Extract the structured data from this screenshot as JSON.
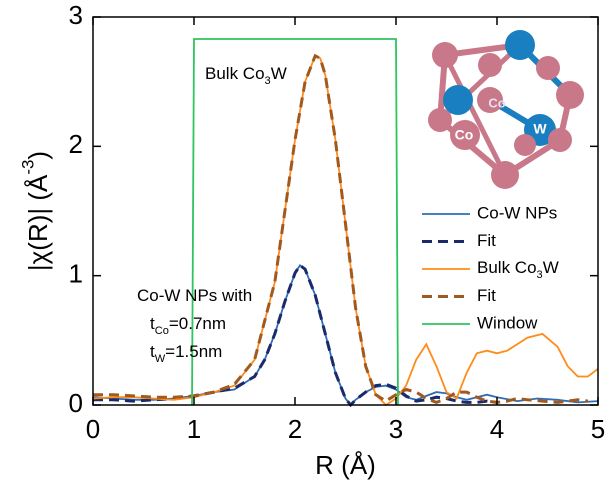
{
  "chart_data": {
    "type": "line",
    "xlabel": "R (Å)",
    "ylabel": [
      "|χ(R)| (Å",
      "-3",
      ")"
    ],
    "xlim": [
      0,
      5
    ],
    "xticks": [
      0,
      1,
      2,
      3,
      4,
      5
    ],
    "ylim": [
      0,
      3
    ],
    "yticks": [
      0,
      1,
      2,
      3
    ],
    "legend": "right",
    "annotations": [
      [
        "Bulk Co",
        "3",
        "W"
      ],
      [
        "Co-W NPs with"
      ],
      [
        "t",
        "Co",
        "=0.7nm"
      ],
      [
        "t",
        "W",
        "=1.5nm"
      ]
    ],
    "inset_labels": [
      "Co",
      "Co",
      "W"
    ],
    "series": [
      {
        "name": "Co-W NPs",
        "color": "#2e6db4",
        "style": "solid",
        "x": [
          0,
          0.2,
          0.4,
          0.6,
          0.8,
          1.0,
          1.2,
          1.4,
          1.6,
          1.7,
          1.8,
          1.9,
          2.0,
          2.05,
          2.1,
          2.2,
          2.3,
          2.4,
          2.5,
          2.55,
          2.6,
          2.7,
          2.8,
          2.9,
          3.0,
          3.1,
          3.2,
          3.3,
          3.4,
          3.5,
          3.6,
          3.7,
          3.8,
          3.9,
          4.0,
          4.2,
          4.4,
          4.6,
          4.8,
          5.0
        ],
        "values": [
          0.06,
          0.05,
          0.04,
          0.04,
          0.05,
          0.07,
          0.1,
          0.12,
          0.22,
          0.35,
          0.55,
          0.8,
          1.02,
          1.08,
          1.05,
          0.85,
          0.55,
          0.25,
          0.05,
          0.0,
          0.04,
          0.1,
          0.14,
          0.15,
          0.12,
          0.06,
          0.04,
          0.07,
          0.1,
          0.09,
          0.06,
          0.04,
          0.06,
          0.08,
          0.06,
          0.03,
          0.05,
          0.04,
          0.02,
          0.03
        ]
      },
      {
        "name": "Fit",
        "color": "#1b2a6b",
        "style": "dashed",
        "x": [
          0,
          0.2,
          0.4,
          0.6,
          0.8,
          1.0,
          1.2,
          1.4,
          1.6,
          1.7,
          1.8,
          1.9,
          2.0,
          2.05,
          2.1,
          2.2,
          2.3,
          2.4,
          2.5,
          2.55,
          2.6,
          2.7,
          2.8,
          2.9,
          3.0,
          3.1,
          3.2,
          3.3,
          3.4,
          3.5,
          3.6,
          3.7,
          3.8,
          3.9,
          4.0
        ],
        "values": [
          0.04,
          0.04,
          0.03,
          0.04,
          0.05,
          0.07,
          0.1,
          0.13,
          0.22,
          0.35,
          0.55,
          0.8,
          1.02,
          1.08,
          1.05,
          0.85,
          0.55,
          0.25,
          0.05,
          0.0,
          0.04,
          0.1,
          0.15,
          0.16,
          0.13,
          0.07,
          0.03,
          0.04,
          0.06,
          0.05,
          0.03,
          0.02,
          0.02,
          0.03,
          0.02
        ]
      },
      {
        "name": [
          "Bulk Co",
          "3",
          "W"
        ],
        "color": "#ff8c1a",
        "style": "solid",
        "x": [
          0,
          0.2,
          0.4,
          0.6,
          0.8,
          1.0,
          1.2,
          1.4,
          1.6,
          1.8,
          1.9,
          2.0,
          2.1,
          2.2,
          2.25,
          2.3,
          2.4,
          2.5,
          2.6,
          2.7,
          2.8,
          2.9,
          3.0,
          3.1,
          3.2,
          3.3,
          3.4,
          3.5,
          3.6,
          3.7,
          3.8,
          3.9,
          4.0,
          4.1,
          4.2,
          4.3,
          4.45,
          4.6,
          4.7,
          4.8,
          4.9,
          5.0
        ],
        "values": [
          0.05,
          0.06,
          0.06,
          0.05,
          0.04,
          0.06,
          0.1,
          0.15,
          0.35,
          0.95,
          1.5,
          2.05,
          2.5,
          2.7,
          2.68,
          2.55,
          2.05,
          1.4,
          0.75,
          0.3,
          0.08,
          0.0,
          0.05,
          0.15,
          0.35,
          0.47,
          0.3,
          0.1,
          0.05,
          0.25,
          0.4,
          0.42,
          0.4,
          0.42,
          0.47,
          0.52,
          0.55,
          0.45,
          0.3,
          0.22,
          0.22,
          0.28
        ]
      },
      {
        "name": "Fit",
        "color": "#a0591f",
        "style": "dashed",
        "x": [
          0,
          0.2,
          0.4,
          0.6,
          0.8,
          1.0,
          1.2,
          1.4,
          1.6,
          1.8,
          1.9,
          2.0,
          2.1,
          2.2,
          2.25,
          2.3,
          2.4,
          2.5,
          2.6,
          2.7,
          2.8,
          2.9,
          3.0,
          3.1,
          3.2,
          3.3,
          3.4,
          3.5,
          3.6,
          3.7,
          3.8,
          3.9,
          4.0,
          4.1,
          4.2,
          4.3,
          4.45,
          4.6,
          4.7,
          4.8,
          4.9
        ],
        "values": [
          0.08,
          0.08,
          0.07,
          0.06,
          0.06,
          0.07,
          0.1,
          0.16,
          0.35,
          0.95,
          1.5,
          2.05,
          2.5,
          2.7,
          2.68,
          2.55,
          2.05,
          1.4,
          0.75,
          0.3,
          0.08,
          0.03,
          0.08,
          0.12,
          0.1,
          0.05,
          0.02,
          0.05,
          0.1,
          0.1,
          0.06,
          0.03,
          0.02,
          0.03,
          0.05,
          0.04,
          0.03,
          0.02,
          0.03,
          0.04,
          0.03
        ]
      },
      {
        "name": "Window",
        "color": "#2ec45e",
        "style": "solid",
        "x": [
          0.98,
          1.0,
          3.0,
          3.02
        ],
        "values": [
          0,
          2.83,
          2.83,
          0
        ]
      }
    ]
  }
}
